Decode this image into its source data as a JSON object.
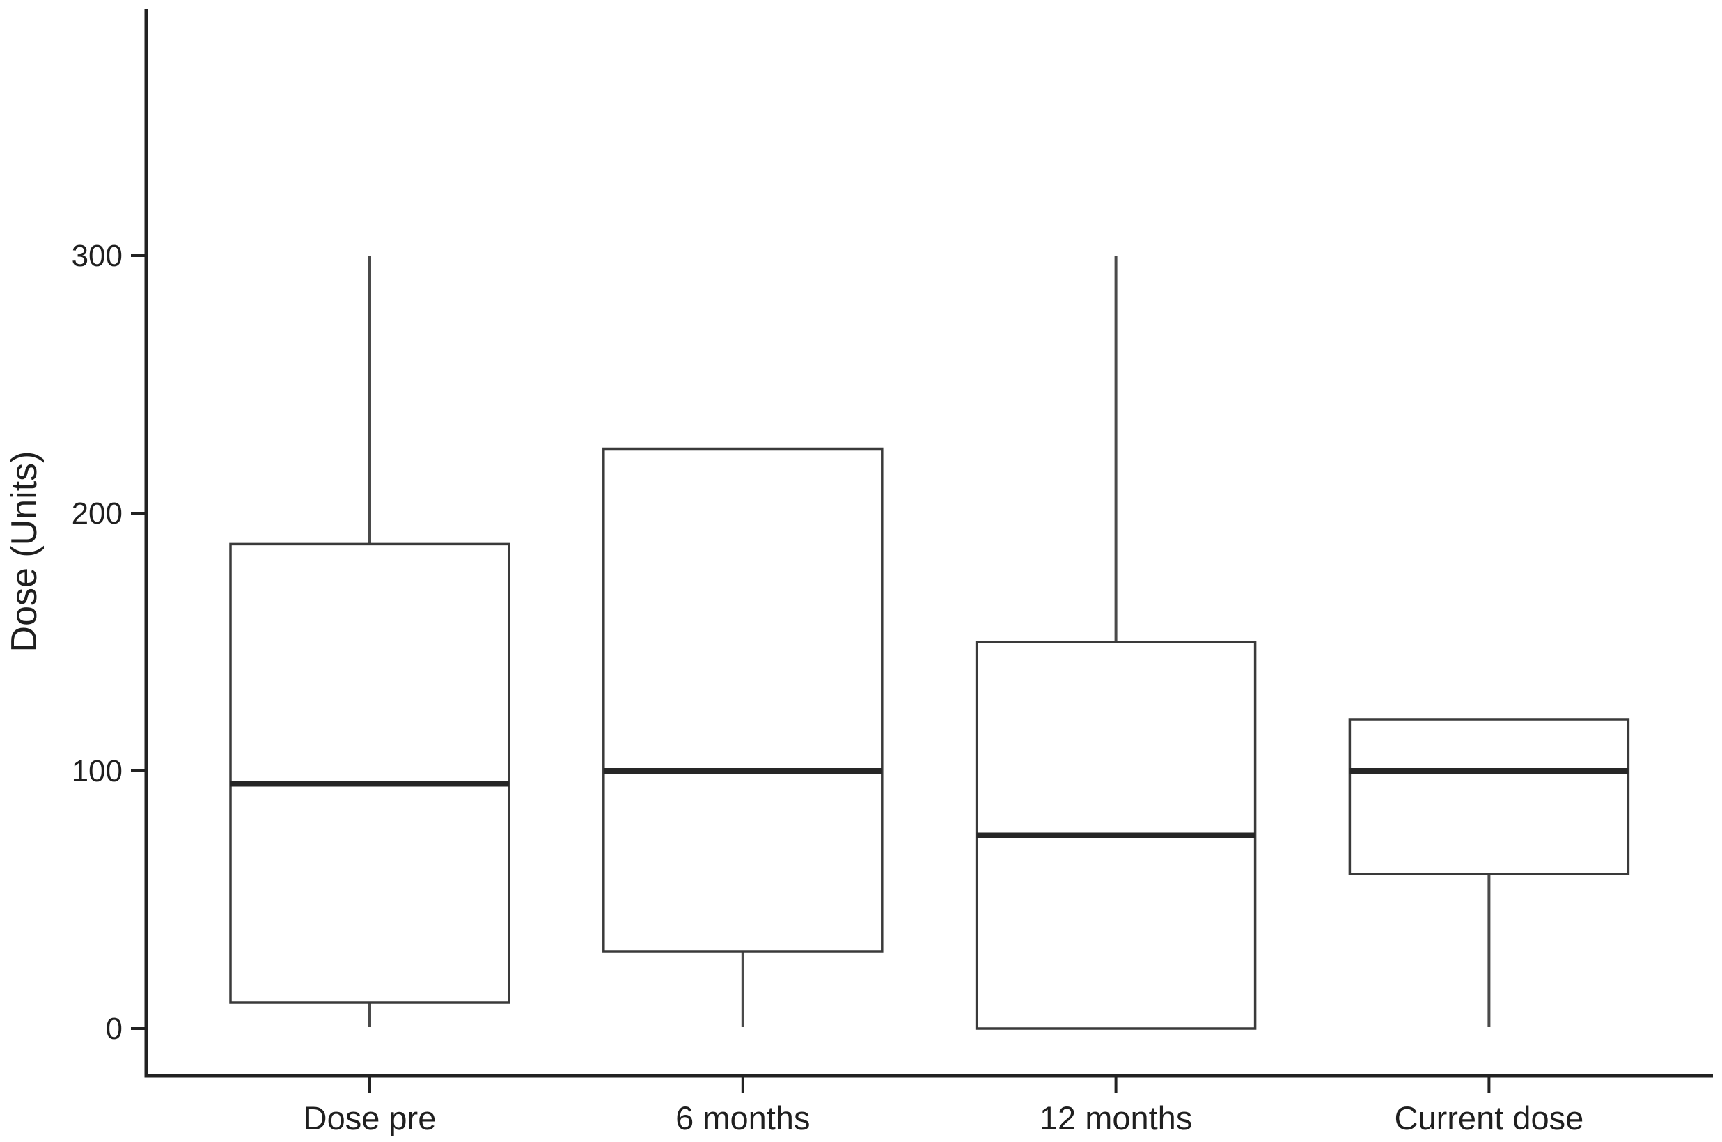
{
  "chart_data": {
    "type": "boxplot",
    "title": "",
    "xlabel": "",
    "ylabel": "Dose (Units)",
    "categories": [
      "Dose pre",
      "6 months",
      "12 months",
      "Current dose"
    ],
    "y_axis": {
      "min": 0,
      "max": 300,
      "ticks": [
        0,
        100,
        200,
        300
      ],
      "tick_labels": [
        "0",
        "100",
        "200",
        "300"
      ]
    },
    "grid": false,
    "legend": false,
    "boxes": [
      {
        "category": "Dose pre",
        "whisker_min": 0,
        "q1": 10,
        "median": 95,
        "q3": 188,
        "whisker_max": 300
      },
      {
        "category": "6 months",
        "whisker_min": 0,
        "q1": 30,
        "median": 100,
        "q3": 225,
        "whisker_max": 225
      },
      {
        "category": "12 months",
        "whisker_min": 0,
        "q1": 0,
        "median": 75,
        "q3": 150,
        "whisker_max": 300
      },
      {
        "category": "Current dose",
        "whisker_min": 0,
        "q1": 60,
        "median": 100,
        "q3": 120,
        "whisker_max": 120
      }
    ],
    "colors": {
      "axis": "#222222",
      "box_border": "#3a3a3a",
      "median": "#262626",
      "whisker": "#4a4a4a",
      "box_fill": "#ffffff",
      "background": "#ffffff"
    }
  }
}
